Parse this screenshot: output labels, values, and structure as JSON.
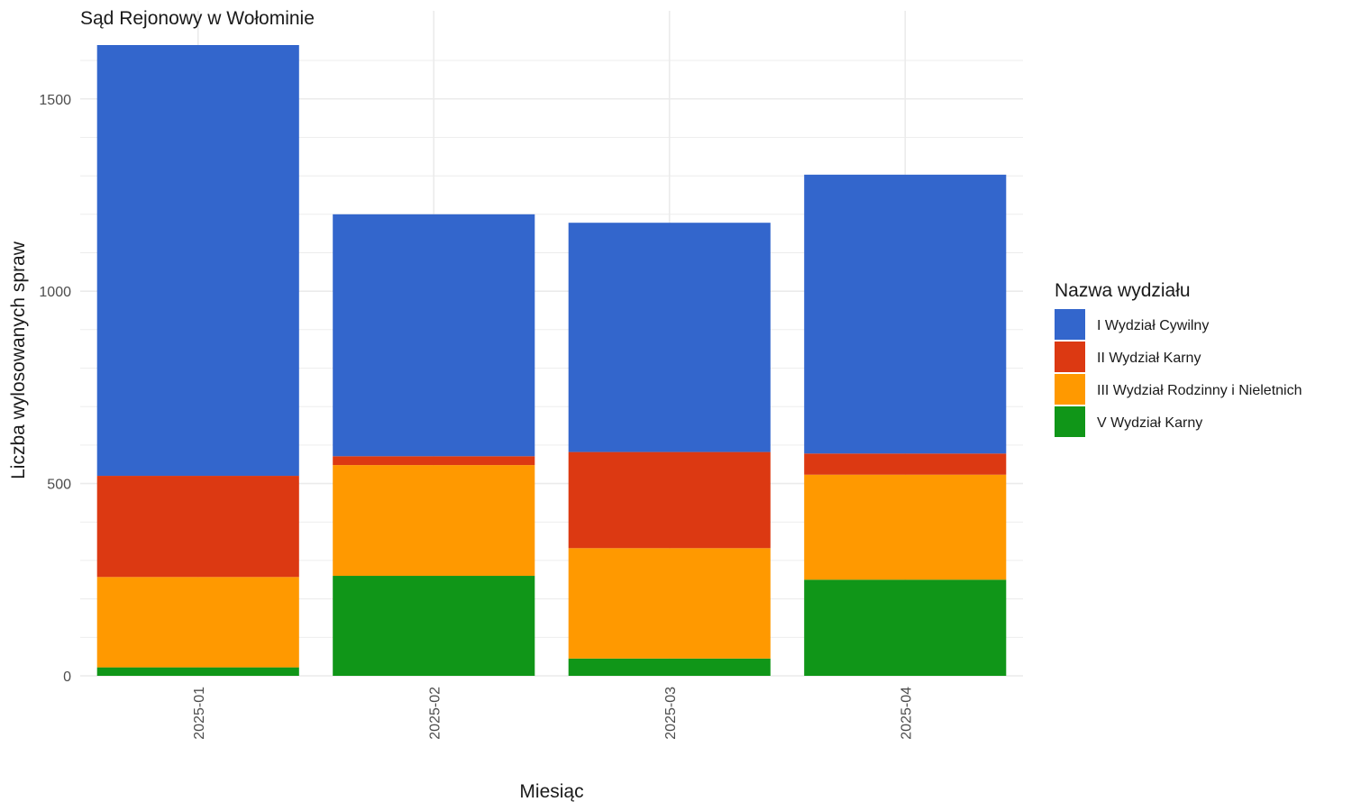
{
  "chart_data": {
    "type": "bar",
    "stacked": true,
    "title": "Sąd Rejonowy w Wołominie",
    "xlabel": "Miesiąc",
    "ylabel": "Liczba wylosowanych spraw",
    "categories": [
      "2025-01",
      "2025-02",
      "2025-03",
      "2025-04"
    ],
    "ylim": [
      0,
      1640
    ],
    "yticks": [
      0,
      500,
      1000,
      1500
    ],
    "y_minor_step": 100,
    "grid": true,
    "legend": {
      "title": "Nazwa wydziału",
      "position": "right"
    },
    "series": [
      {
        "name": "V Wydział Karny",
        "color": "#109618",
        "values": [
          22,
          260,
          45,
          250
        ]
      },
      {
        "name": "III Wydział Rodzinny i Nieletnich",
        "color": "#ff9900",
        "values": [
          235,
          288,
          287,
          273
        ]
      },
      {
        "name": "II Wydział Karny",
        "color": "#dc3912",
        "values": [
          263,
          23,
          250,
          55
        ]
      },
      {
        "name": "I Wydział Cywilny",
        "color": "#3366cc",
        "values": [
          1120,
          629,
          596,
          725
        ]
      }
    ],
    "legend_order": [
      "I Wydział Cywilny",
      "II Wydział Karny",
      "III Wydział Rodzinny i Nieletnich",
      "V Wydział Karny"
    ]
  }
}
